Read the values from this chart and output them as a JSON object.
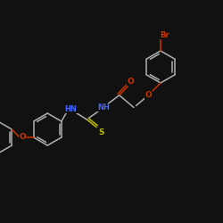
{
  "bg": "#111111",
  "bc": "#b0b0b0",
  "nc": "#4466ff",
  "oc": "#cc3300",
  "sc": "#bbbb00",
  "brc": "#cc3300",
  "lw": 1.1,
  "fs": 5.5,
  "figsize": [
    2.5,
    2.5
  ],
  "dpi": 100,
  "xlim": [
    0,
    10
  ],
  "ylim": [
    0,
    10
  ]
}
